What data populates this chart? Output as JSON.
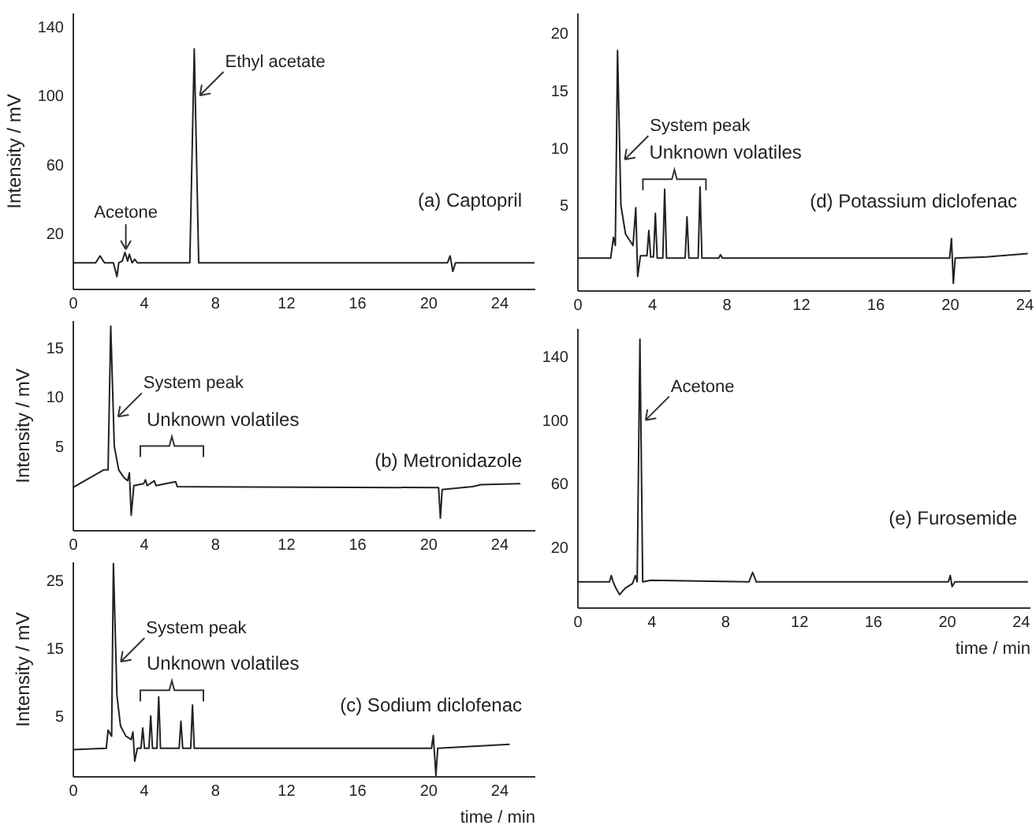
{
  "chart_data": [
    {
      "type": "line",
      "title": "(a) Captopril",
      "ylabel": "Intensity / mV",
      "color": "#222222",
      "xlim": [
        0,
        26
      ],
      "xticks": [
        0,
        4,
        8,
        12,
        16,
        20,
        24
      ],
      "ylim": [
        -12,
        148
      ],
      "yticks": [
        20,
        60,
        100,
        140
      ],
      "x": [
        0,
        1.3,
        1.55,
        1.8,
        2.3,
        2.5,
        2.6,
        2.8,
        2.95,
        3.1,
        3.2,
        3.35,
        3.5,
        3.65,
        6.6,
        6.85,
        7.1,
        21.1,
        21.25,
        21.4,
        21.55,
        26
      ],
      "values": [
        3,
        3,
        7,
        3,
        3,
        -5,
        3,
        4,
        9,
        4,
        8,
        3,
        5,
        3,
        3,
        127,
        3,
        3,
        7,
        -2,
        3,
        3
      ],
      "annotations": [
        {
          "text": "Acetone",
          "x": 3.0,
          "y": 8
        },
        {
          "text": "Ethyl acetate",
          "x": 6.9,
          "y": 100
        }
      ]
    },
    {
      "type": "line",
      "title": "(b) Metronidazole",
      "ylabel": "Intensity / mV",
      "color": "#222222",
      "xlim": [
        0,
        26
      ],
      "xticks": [
        0,
        4,
        8,
        12,
        16,
        20,
        24
      ],
      "ylim": [
        -3.5,
        17.8
      ],
      "yticks": [
        5,
        10,
        15
      ],
      "x": [
        0,
        1.75,
        2.0,
        2.15,
        2.35,
        2.6,
        2.9,
        3.1,
        3.2,
        3.3,
        3.45,
        4.0,
        4.1,
        4.2,
        4.6,
        4.7,
        5.8,
        5.9,
        20.6,
        20.7,
        20.8,
        22.5,
        23,
        25.2
      ],
      "values": [
        0.8,
        2.6,
        2.6,
        17.2,
        5,
        2.6,
        1.8,
        1.5,
        2.3,
        -2,
        1,
        1.2,
        1.6,
        1,
        1.5,
        1,
        1.4,
        0.9,
        0.8,
        -2.3,
        0.6,
        0.9,
        1.1,
        1.2
      ],
      "annotations": [
        {
          "text": "System peak",
          "x": 2.3,
          "y": 8
        },
        "Unknown volatiles"
      ]
    },
    {
      "type": "line",
      "title": "(c) Sodium diclofenac",
      "ylabel": "Intensity / mV",
      "xlabel": "time / min",
      "color": "#222222",
      "xlim": [
        0,
        26
      ],
      "xticks": [
        0,
        4,
        8,
        12,
        16,
        20,
        24
      ],
      "ylim": [
        -3.9,
        27.8
      ],
      "yticks": [
        5,
        15,
        25
      ],
      "x": [
        0,
        1.9,
        2.0,
        2.2,
        2.3,
        2.5,
        2.7,
        3.0,
        3.3,
        3.4,
        3.5,
        3.65,
        3.85,
        3.95,
        4.05,
        4.3,
        4.4,
        4.5,
        4.75,
        4.85,
        4.95,
        6.0,
        6.1,
        6.2,
        6.65,
        6.75,
        6.85,
        20.2,
        20.3,
        20.45,
        20.55,
        24.6
      ],
      "values": [
        0,
        0.2,
        2.9,
        2,
        27.5,
        8,
        3.5,
        2,
        1.5,
        2.6,
        -1.7,
        0.2,
        0.2,
        3.2,
        0.2,
        0.2,
        5,
        0.2,
        0.2,
        7.8,
        0.2,
        0.2,
        4.2,
        0.2,
        0.2,
        6.6,
        0.2,
        0.2,
        2.1,
        -3.8,
        0.2,
        0.8
      ],
      "annotations": [
        {
          "text": "System peak",
          "x": 2.45,
          "y": 13
        },
        "Unknown volatiles"
      ]
    },
    {
      "type": "line",
      "title": "(d) Potassium diclofenac",
      "color": "#222222",
      "xlim": [
        0,
        24.3
      ],
      "xticks": [
        0,
        4,
        8,
        12,
        16,
        20,
        24
      ],
      "ylim": [
        -2.4,
        21.8
      ],
      "yticks": [
        5,
        10,
        15,
        20
      ],
      "x": [
        0,
        1.8,
        1.95,
        2.05,
        2.17,
        2.35,
        2.6,
        3.0,
        3.15,
        3.25,
        3.4,
        3.75,
        3.85,
        3.95,
        4.1,
        4.2,
        4.3,
        4.6,
        4.7,
        4.8,
        5.8,
        5.9,
        6.0,
        6.5,
        6.6,
        6.7,
        7.6,
        7.7,
        7.8,
        20.0,
        20.1,
        20.2,
        20.3,
        22,
        24.2
      ],
      "values": [
        0.4,
        0.4,
        2.2,
        1.5,
        18.5,
        5,
        2.5,
        1.5,
        4.8,
        -1.2,
        0.6,
        0.6,
        2.8,
        0.5,
        0.5,
        4.3,
        0.4,
        0.4,
        6.4,
        0.4,
        0.4,
        4,
        0.4,
        0.4,
        6.6,
        0.4,
        0.4,
        0.7,
        0.4,
        0.4,
        2.1,
        -1.8,
        0.4,
        0.5,
        0.8
      ],
      "annotations": [
        {
          "text": "System peak",
          "x": 2.3,
          "y": 9
        },
        "Unknown volatiles"
      ]
    },
    {
      "type": "line",
      "title": "(e) Furosemide",
      "xlabel": "time / min",
      "color": "#222222",
      "xlim": [
        0,
        24.5
      ],
      "xticks": [
        0,
        4,
        8,
        12,
        16,
        20,
        24
      ],
      "ylim": [
        -18,
        158
      ],
      "yticks": [
        20,
        60,
        100,
        140
      ],
      "x": [
        0,
        1.75,
        1.85,
        1.95,
        2.1,
        2.3,
        2.6,
        3.0,
        3.15,
        3.25,
        3.4,
        3.55,
        4.0,
        9.3,
        9.5,
        9.7,
        20.1,
        20.2,
        20.3,
        20.45,
        24.4
      ],
      "values": [
        -2,
        -2,
        2,
        -2,
        -6,
        -10,
        -6,
        -3,
        2,
        -2,
        151,
        -2,
        -1,
        -2,
        4,
        -2,
        -2,
        2,
        -5,
        -2,
        -2
      ],
      "annotations": [
        {
          "text": "Acetone",
          "x": 3.45,
          "y": 100
        }
      ]
    }
  ]
}
